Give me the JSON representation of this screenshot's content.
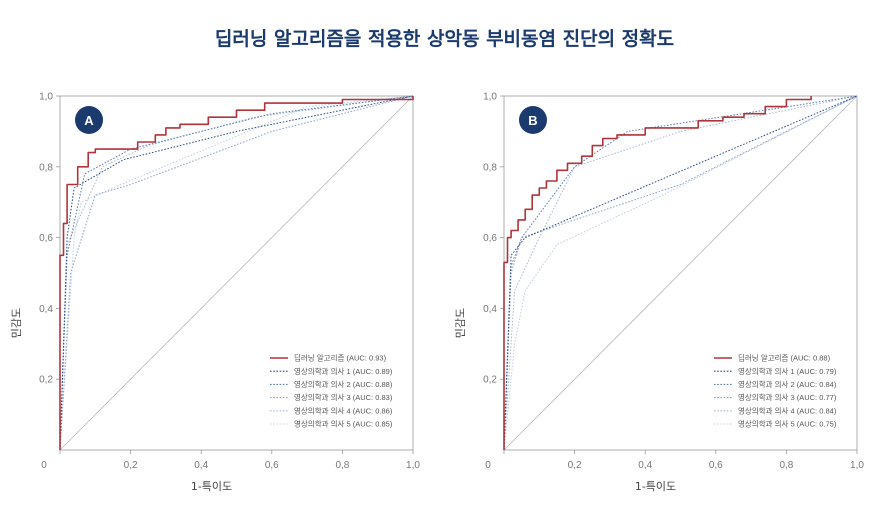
{
  "title": "딥러닝 알고리즘을 적용한 상악동 부비동염 진단의 정확도",
  "chart_data": [
    {
      "type": "line",
      "badge": "A",
      "xlabel": "1-특이도",
      "ylabel": "민감도",
      "xlim": [
        0,
        1
      ],
      "ylim": [
        0,
        1
      ],
      "x_ticks": [
        "0",
        "0,2",
        "0,4",
        "0,6",
        "0,8",
        "1,0"
      ],
      "y_ticks": [
        "0,2",
        "0,4",
        "0,6",
        "0,8",
        "1,0"
      ],
      "grid": false,
      "legend_position": "bottom-right",
      "series": [
        {
          "name": "딥러닝 알고리즘 (AUC: 0.93)",
          "color": "#b0343a",
          "style": "solid",
          "points": [
            [
              0,
              0
            ],
            [
              0,
              0.55
            ],
            [
              0.01,
              0.55
            ],
            [
              0.01,
              0.64
            ],
            [
              0.02,
              0.64
            ],
            [
              0.02,
              0.75
            ],
            [
              0.05,
              0.75
            ],
            [
              0.05,
              0.8
            ],
            [
              0.08,
              0.8
            ],
            [
              0.08,
              0.84
            ],
            [
              0.1,
              0.84
            ],
            [
              0.1,
              0.85
            ],
            [
              0.22,
              0.85
            ],
            [
              0.22,
              0.87
            ],
            [
              0.27,
              0.87
            ],
            [
              0.27,
              0.89
            ],
            [
              0.3,
              0.89
            ],
            [
              0.3,
              0.91
            ],
            [
              0.34,
              0.91
            ],
            [
              0.34,
              0.92
            ],
            [
              0.42,
              0.92
            ],
            [
              0.42,
              0.94
            ],
            [
              0.5,
              0.94
            ],
            [
              0.5,
              0.96
            ],
            [
              0.58,
              0.96
            ],
            [
              0.58,
              0.98
            ],
            [
              0.8,
              0.98
            ],
            [
              0.8,
              0.99
            ],
            [
              1,
              0.99
            ],
            [
              1,
              1
            ]
          ]
        },
        {
          "name": "영상의학과 의사 1 (AUC: 0.89)",
          "color": "#2d4f86",
          "style": "dotted",
          "points": [
            [
              0,
              0
            ],
            [
              0.02,
              0.6
            ],
            [
              0.04,
              0.74
            ],
            [
              0.18,
              0.82
            ],
            [
              0.5,
              0.9
            ],
            [
              1,
              1
            ]
          ]
        },
        {
          "name": "영상의학과 의사 2 (AUC: 0.88)",
          "color": "#5f7fae",
          "style": "dotted",
          "points": [
            [
              0,
              0
            ],
            [
              0.02,
              0.55
            ],
            [
              0.07,
              0.78
            ],
            [
              0.2,
              0.85
            ],
            [
              0.6,
              0.95
            ],
            [
              1,
              1
            ]
          ]
        },
        {
          "name": "영상의학과 의사 3 (AUC: 0.83)",
          "color": "#8fa4c6",
          "style": "dotted",
          "points": [
            [
              0,
              0
            ],
            [
              0.03,
              0.5
            ],
            [
              0.1,
              0.72
            ],
            [
              0.2,
              0.75
            ],
            [
              0.6,
              0.9
            ],
            [
              1,
              1
            ]
          ]
        },
        {
          "name": "영상의학과 의사 4 (AUC: 0.86)",
          "color": "#a9bad4",
          "style": "dotted",
          "points": [
            [
              0,
              0
            ],
            [
              0.02,
              0.58
            ],
            [
              0.12,
              0.8
            ],
            [
              0.25,
              0.86
            ],
            [
              0.55,
              0.94
            ],
            [
              1,
              1
            ]
          ]
        },
        {
          "name": "영상의학과 의사 5 (AUC: 0.85)",
          "color": "#c4cfe0",
          "style": "dotted",
          "points": [
            [
              0,
              0
            ],
            [
              0.04,
              0.6
            ],
            [
              0.06,
              0.7
            ],
            [
              0.15,
              0.74
            ],
            [
              0.7,
              0.97
            ],
            [
              1,
              1
            ]
          ]
        }
      ]
    },
    {
      "type": "line",
      "badge": "B",
      "xlabel": "1-특이도",
      "ylabel": "민감도",
      "xlim": [
        0,
        1
      ],
      "ylim": [
        0,
        1
      ],
      "x_ticks": [
        "0",
        "0,2",
        "0,4",
        "0,6",
        "0,8",
        "1,0"
      ],
      "y_ticks": [
        "0,2",
        "0,4",
        "0,6",
        "0,8",
        "1,0"
      ],
      "grid": false,
      "legend_position": "bottom-right",
      "series": [
        {
          "name": "딥러닝 알고리즘 (AUC: 0.88)",
          "color": "#b0343a",
          "style": "solid",
          "points": [
            [
              0,
              0
            ],
            [
              0,
              0.53
            ],
            [
              0.01,
              0.53
            ],
            [
              0.01,
              0.6
            ],
            [
              0.02,
              0.6
            ],
            [
              0.02,
              0.62
            ],
            [
              0.04,
              0.62
            ],
            [
              0.04,
              0.65
            ],
            [
              0.06,
              0.65
            ],
            [
              0.06,
              0.68
            ],
            [
              0.08,
              0.68
            ],
            [
              0.08,
              0.72
            ],
            [
              0.1,
              0.72
            ],
            [
              0.1,
              0.74
            ],
            [
              0.12,
              0.74
            ],
            [
              0.12,
              0.76
            ],
            [
              0.15,
              0.76
            ],
            [
              0.15,
              0.79
            ],
            [
              0.18,
              0.79
            ],
            [
              0.18,
              0.81
            ],
            [
              0.22,
              0.81
            ],
            [
              0.22,
              0.83
            ],
            [
              0.25,
              0.83
            ],
            [
              0.25,
              0.86
            ],
            [
              0.28,
              0.86
            ],
            [
              0.28,
              0.88
            ],
            [
              0.32,
              0.88
            ],
            [
              0.32,
              0.89
            ],
            [
              0.4,
              0.89
            ],
            [
              0.4,
              0.91
            ],
            [
              0.55,
              0.91
            ],
            [
              0.55,
              0.93
            ],
            [
              0.62,
              0.93
            ],
            [
              0.62,
              0.94
            ],
            [
              0.68,
              0.94
            ],
            [
              0.68,
              0.95
            ],
            [
              0.74,
              0.95
            ],
            [
              0.74,
              0.97
            ],
            [
              0.8,
              0.97
            ],
            [
              0.8,
              0.99
            ],
            [
              0.87,
              0.99
            ],
            [
              0.87,
              1
            ]
          ]
        },
        {
          "name": "영상의학과 의사 1 (AUC: 0.79)",
          "color": "#2d4f86",
          "style": "dotted",
          "points": [
            [
              0,
              0
            ],
            [
              0.02,
              0.55
            ],
            [
              0.06,
              0.6
            ],
            [
              0.2,
              0.66
            ],
            [
              1,
              1
            ]
          ]
        },
        {
          "name": "영상의학과 의사 2 (AUC: 0.84)",
          "color": "#5f7fae",
          "style": "dotted",
          "points": [
            [
              0,
              0
            ],
            [
              0.02,
              0.52
            ],
            [
              0.05,
              0.6
            ],
            [
              0.2,
              0.8
            ],
            [
              0.35,
              0.9
            ],
            [
              1,
              1
            ]
          ]
        },
        {
          "name": "영상의학과 의사 3 (AUC: 0.77)",
          "color": "#8fa4c6",
          "style": "dotted",
          "points": [
            [
              0,
              0
            ],
            [
              0.02,
              0.5
            ],
            [
              0.05,
              0.6
            ],
            [
              0.5,
              0.75
            ],
            [
              1,
              1
            ]
          ]
        },
        {
          "name": "영상의학과 의사 4 (AUC: 0.84)",
          "color": "#a9bad4",
          "style": "dotted",
          "points": [
            [
              0,
              0
            ],
            [
              0.03,
              0.45
            ],
            [
              0.1,
              0.6
            ],
            [
              0.2,
              0.8
            ],
            [
              0.5,
              0.9
            ],
            [
              1,
              1
            ]
          ]
        },
        {
          "name": "영상의학과 의사 5 (AUC: 0.75)",
          "color": "#c4cfe0",
          "style": "dotted",
          "points": [
            [
              0,
              0
            ],
            [
              0.03,
              0.3
            ],
            [
              0.06,
              0.45
            ],
            [
              0.15,
              0.58
            ],
            [
              0.45,
              0.72
            ],
            [
              1,
              1
            ]
          ]
        }
      ]
    }
  ]
}
